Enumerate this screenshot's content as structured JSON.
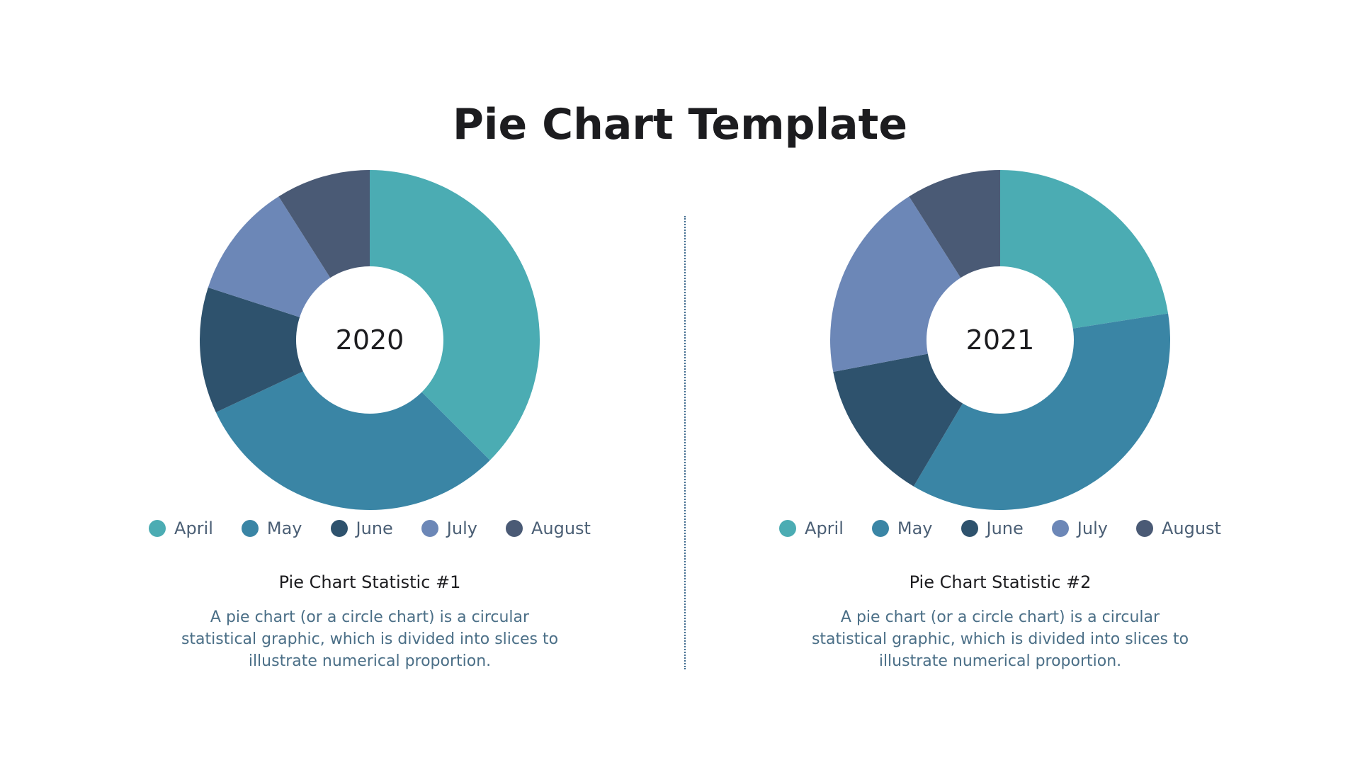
{
  "title": "Pie Chart Template",
  "colors": {
    "April": "#4bacb3",
    "May": "#3a85a5",
    "June": "#2e526d",
    "July": "#6c87b7",
    "August": "#4a5a75"
  },
  "panels": [
    {
      "center_label": "2020",
      "legend": [
        "April",
        "May",
        "June",
        "July",
        "August"
      ],
      "stat_title": "Pie Chart Statistic #1",
      "stat_desc": "A pie chart (or a circle chart) is a circular statistical graphic, which is divided into slices to illustrate numerical proportion."
    },
    {
      "center_label": "2021",
      "legend": [
        "April",
        "May",
        "June",
        "July",
        "August"
      ],
      "stat_title": "Pie Chart Statistic #2",
      "stat_desc": "A pie chart (or a circle chart) is a circular statistical graphic, which is divided into slices to illustrate numerical proportion."
    }
  ],
  "chart_data": [
    {
      "type": "pie",
      "title": "2020",
      "categories": [
        "April",
        "May",
        "June",
        "July",
        "August"
      ],
      "values": [
        37.5,
        30.5,
        12,
        11,
        9
      ],
      "hole": true
    },
    {
      "type": "pie",
      "title": "2021",
      "categories": [
        "April",
        "May",
        "June",
        "July",
        "August"
      ],
      "values": [
        22.5,
        36,
        13.5,
        19,
        9
      ],
      "hole": true
    }
  ]
}
